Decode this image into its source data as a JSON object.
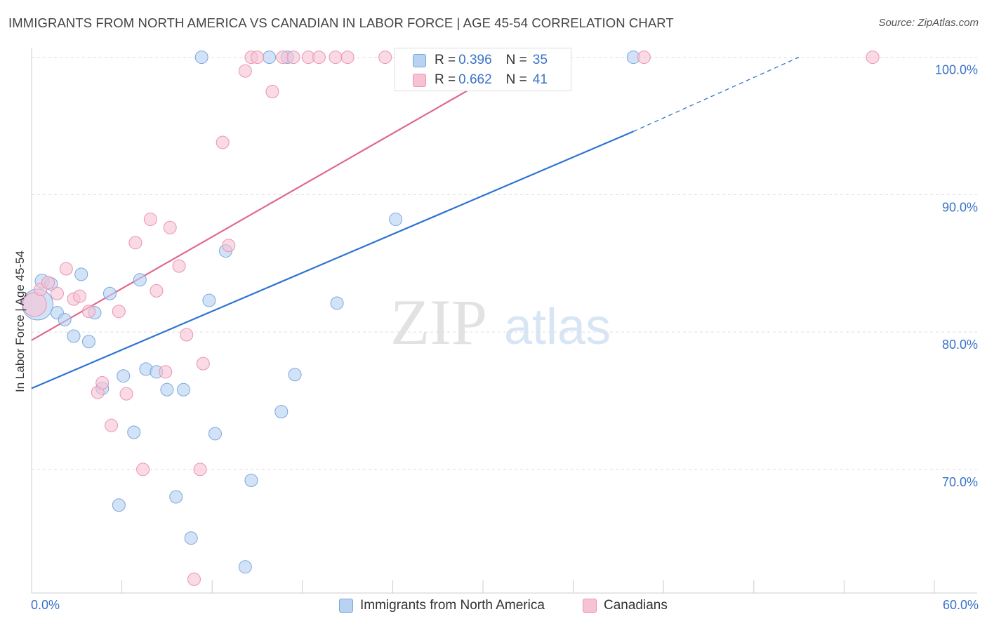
{
  "title": "IMMIGRANTS FROM NORTH AMERICA VS CANADIAN IN LABOR FORCE | AGE 45-54 CORRELATION CHART",
  "source": "Source: ZipAtlas.com",
  "watermark": {
    "zip": "ZIP",
    "atlas": "atlas"
  },
  "colors": {
    "blue_fill": "#b8d2f2",
    "blue_stroke": "#7aa7de",
    "blue_line": "#2e74d0",
    "pink_fill": "#f7c3d3",
    "pink_stroke": "#eb93b0",
    "pink_line": "#e0688f",
    "tick_text": "#3a72c8",
    "grid": "#dddddd"
  },
  "legend_top": {
    "rows": [
      {
        "r_label": "R = ",
        "r_value": "0.396",
        "n_label": "N = ",
        "n_value": "35",
        "series": "blue"
      },
      {
        "r_label": "R = ",
        "r_value": "0.662",
        "n_label": "N = ",
        "n_value": "41",
        "series": "pink"
      }
    ]
  },
  "legend_bottom": {
    "items": [
      {
        "label": "Immigrants from North America",
        "series": "blue"
      },
      {
        "label": "Canadians",
        "series": "pink"
      }
    ]
  },
  "chart_data": {
    "type": "scatter",
    "title": "IMMIGRANTS FROM NORTH AMERICA VS CANADIAN IN LABOR FORCE | AGE 45-54 CORRELATION CHART",
    "xlabel": "",
    "ylabel": "In Labor Force | Age 45-54",
    "xlim": [
      0,
      60
    ],
    "ylim": [
      61,
      101
    ],
    "x_tick_labels": {
      "min": "0.0%",
      "max": "60.0%"
    },
    "y_ticks": [
      {
        "value": 100,
        "label": "100.0%"
      },
      {
        "value": 90,
        "label": "90.0%"
      },
      {
        "value": 80,
        "label": "80.0%"
      },
      {
        "value": 70,
        "label": "70.0%"
      }
    ],
    "grid": true,
    "legend_position": "top-center",
    "series": [
      {
        "name": "Immigrants from North America",
        "color": "blue",
        "r": 0.396,
        "n": 35,
        "trend": {
          "x0": 0,
          "y0": 75.9,
          "x1": 40,
          "y1": 94.6,
          "dashed_to_x": 51,
          "dashed_to_y": 100
        },
        "points": [
          [
            0.4,
            82.0,
            22
          ],
          [
            0.7,
            83.7,
            10
          ],
          [
            1.3,
            83.5,
            9
          ],
          [
            1.7,
            81.4,
            9
          ],
          [
            2.2,
            80.9,
            9
          ],
          [
            2.8,
            79.7,
            9
          ],
          [
            3.3,
            84.2,
            9
          ],
          [
            3.8,
            79.3,
            9
          ],
          [
            4.2,
            81.4,
            9
          ],
          [
            4.7,
            75.9,
            9
          ],
          [
            5.2,
            82.8,
            9
          ],
          [
            5.8,
            67.4,
            9
          ],
          [
            6.1,
            76.8,
            9
          ],
          [
            6.8,
            72.7,
            9
          ],
          [
            7.2,
            83.8,
            9
          ],
          [
            7.6,
            77.3,
            9
          ],
          [
            8.3,
            77.1,
            9
          ],
          [
            9.0,
            75.8,
            9
          ],
          [
            9.6,
            68.0,
            9
          ],
          [
            10.1,
            75.8,
            9
          ],
          [
            10.6,
            65.0,
            9
          ],
          [
            11.3,
            100.0,
            9
          ],
          [
            11.8,
            82.3,
            9
          ],
          [
            12.2,
            72.6,
            9
          ],
          [
            12.9,
            85.9,
            9
          ],
          [
            14.2,
            62.9,
            9
          ],
          [
            14.6,
            69.2,
            9
          ],
          [
            15.8,
            100.0,
            9
          ],
          [
            16.6,
            74.2,
            9
          ],
          [
            17.0,
            100.0,
            9
          ],
          [
            17.5,
            76.9,
            9
          ],
          [
            20.3,
            82.1,
            9
          ],
          [
            24.2,
            88.2,
            9
          ],
          [
            26.5,
            100.0,
            9
          ],
          [
            40.0,
            100.0,
            9
          ]
        ]
      },
      {
        "name": "Canadians",
        "color": "pink",
        "r": 0.662,
        "n": 41,
        "trend": {
          "x0": 0,
          "y0": 79.4,
          "x1": 33,
          "y1": 100.1
        },
        "points": [
          [
            0.2,
            82.0,
            17
          ],
          [
            0.6,
            83.1,
            9
          ],
          [
            1.1,
            83.6,
            9
          ],
          [
            1.7,
            82.8,
            9
          ],
          [
            2.3,
            84.6,
            9
          ],
          [
            2.8,
            82.4,
            9
          ],
          [
            3.2,
            82.6,
            9
          ],
          [
            3.8,
            81.5,
            9
          ],
          [
            4.4,
            75.6,
            9
          ],
          [
            4.7,
            76.3,
            9
          ],
          [
            5.3,
            73.2,
            9
          ],
          [
            5.8,
            81.5,
            9
          ],
          [
            6.3,
            75.5,
            9
          ],
          [
            6.9,
            86.5,
            9
          ],
          [
            7.4,
            70.0,
            9
          ],
          [
            7.9,
            88.2,
            9
          ],
          [
            8.3,
            83.0,
            9
          ],
          [
            8.9,
            77.1,
            9
          ],
          [
            9.2,
            87.6,
            9
          ],
          [
            9.8,
            84.8,
            9
          ],
          [
            10.3,
            79.8,
            9
          ],
          [
            10.8,
            62.0,
            9
          ],
          [
            11.2,
            70.0,
            9
          ],
          [
            11.4,
            77.7,
            9
          ],
          [
            12.7,
            93.8,
            9
          ],
          [
            13.1,
            86.3,
            9
          ],
          [
            14.2,
            99.0,
            9
          ],
          [
            14.6,
            100.0,
            9
          ],
          [
            15.0,
            100.0,
            9
          ],
          [
            16.0,
            97.5,
            9
          ],
          [
            16.7,
            100.0,
            9
          ],
          [
            17.4,
            100.0,
            9
          ],
          [
            18.4,
            100.0,
            9
          ],
          [
            19.1,
            100.0,
            9
          ],
          [
            20.2,
            100.0,
            9
          ],
          [
            21.0,
            100.0,
            9
          ],
          [
            23.5,
            100.0,
            9
          ],
          [
            24.8,
            100.0,
            9
          ],
          [
            31.0,
            100.0,
            9
          ],
          [
            40.7,
            100.0,
            9
          ],
          [
            55.9,
            100.0,
            9
          ]
        ]
      }
    ]
  }
}
